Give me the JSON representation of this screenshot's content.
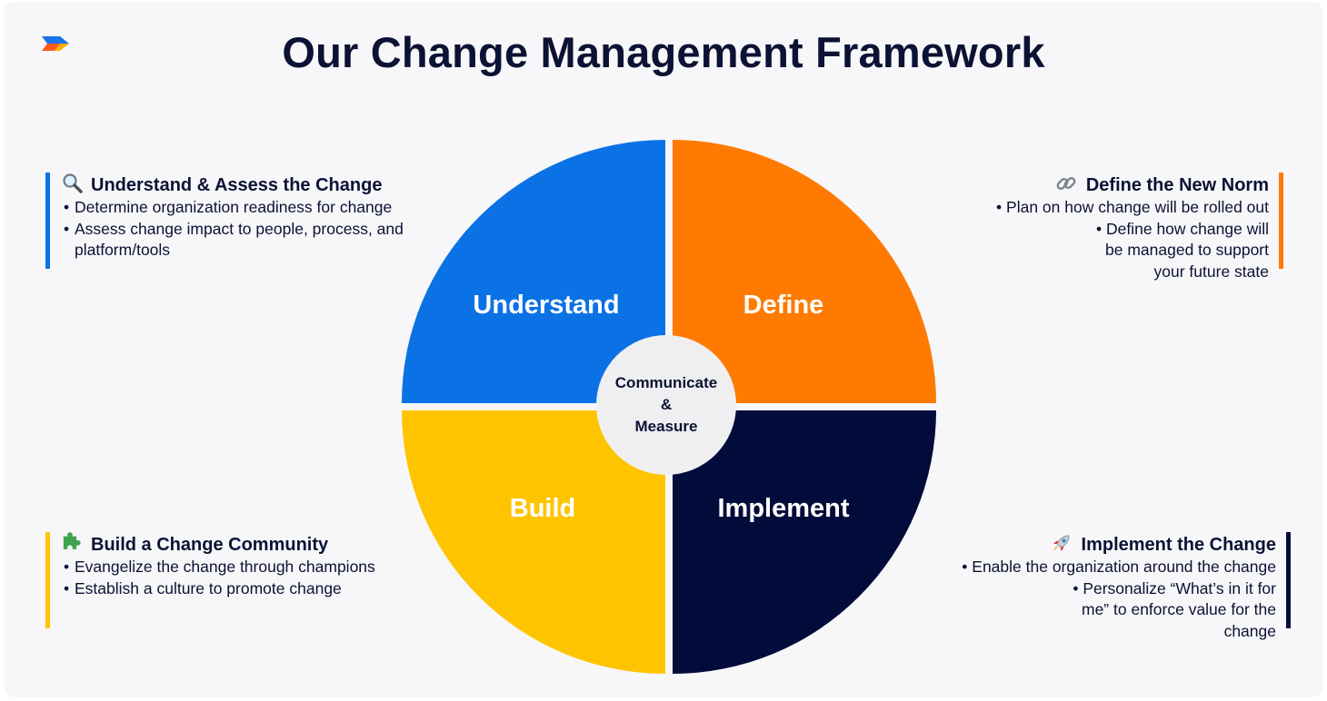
{
  "title": "Our Change Management Framework",
  "colors": {
    "understand": "#0a72e4",
    "define": "#ff7a00",
    "build": "#ffc400",
    "implement": "#020c3a",
    "hub": "#efeff2",
    "text": "#0b1233"
  },
  "wheel": {
    "quadrants": [
      "Understand",
      "Define",
      "Build",
      "Implement"
    ],
    "hub_lines": [
      "Communicate",
      "&",
      "Measure"
    ]
  },
  "panels": {
    "understand": {
      "icon": "magnifier-icon",
      "heading": "Understand & Assess the Change",
      "bullets": [
        "Determine organization readiness for change",
        "Assess change impact to people, process, and platform/tools"
      ]
    },
    "define": {
      "icon": "link-icon",
      "heading": "Define the New Norm",
      "bullets": [
        "Plan on how change will be rolled out",
        "Define how change will be managed to support your future state"
      ]
    },
    "build": {
      "icon": "puzzle-icon",
      "heading": "Build a Change Community",
      "bullets": [
        "Evangelize the change through champions",
        "Establish a culture to promote change"
      ]
    },
    "implement": {
      "icon": "rocket-icon",
      "heading": "Implement the Change",
      "bullets": [
        "Enable the organization around the change",
        "Personalize “What’s in it for me” to enforce value for the change"
      ]
    }
  }
}
